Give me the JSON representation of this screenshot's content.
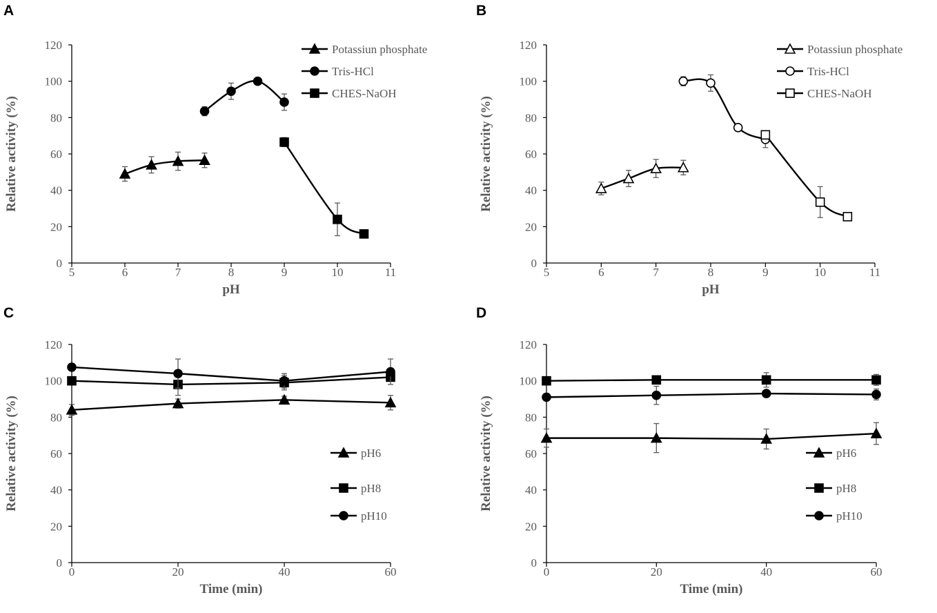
{
  "chart_data": [
    {
      "panel": "A",
      "type": "line",
      "xlabel": "pH",
      "ylabel": "Relative activity (%)",
      "xlim": [
        5,
        11
      ],
      "ylim": [
        0,
        120
      ],
      "xticks": [
        5,
        6,
        7,
        8,
        9,
        10,
        11
      ],
      "yticks": [
        0,
        20,
        40,
        60,
        80,
        100,
        120
      ],
      "legend": "top-right",
      "marker_fill": "filled",
      "smooth": true,
      "series": [
        {
          "name": "Potassiun phosphate",
          "marker": "triangle",
          "x": [
            6,
            6.5,
            7,
            7.5
          ],
          "y": [
            49,
            54,
            56,
            56.5
          ],
          "err": [
            4,
            4.5,
            5,
            4
          ]
        },
        {
          "name": "Tris-HCl",
          "marker": "circle",
          "x": [
            7.5,
            8,
            8.5,
            9
          ],
          "y": [
            83.5,
            94.5,
            100,
            88.5
          ],
          "err": [
            2.5,
            4.5,
            1,
            4.5
          ]
        },
        {
          "name": "CHES-NaOH",
          "marker": "square",
          "x": [
            9,
            10,
            10.5
          ],
          "y": [
            66.5,
            24,
            16
          ],
          "err": [
            2.5,
            9,
            2
          ]
        }
      ]
    },
    {
      "panel": "B",
      "type": "line",
      "xlabel": "pH",
      "ylabel": "Relative activity (%)",
      "xlim": [
        5,
        11
      ],
      "ylim": [
        0,
        120
      ],
      "xticks": [
        5,
        6,
        7,
        8,
        9,
        10,
        11
      ],
      "yticks": [
        0,
        20,
        40,
        60,
        80,
        100,
        120
      ],
      "legend": "top-right",
      "marker_fill": "open",
      "smooth": true,
      "series": [
        {
          "name": "Potassiun phosphate",
          "marker": "triangle",
          "x": [
            6,
            6.5,
            7,
            7.5
          ],
          "y": [
            41,
            46.5,
            52,
            52.5
          ],
          "err": [
            3.5,
            4.5,
            5,
            4
          ]
        },
        {
          "name": "Tris-HCl",
          "marker": "circle",
          "x": [
            7.5,
            8,
            8.5,
            9
          ],
          "y": [
            100,
            99,
            74.5,
            68
          ],
          "err": [
            2.5,
            4.5,
            1.5,
            4.5
          ]
        },
        {
          "name": "CHES-NaOH",
          "marker": "square",
          "x": [
            9,
            10,
            10.5
          ],
          "y": [
            70.5,
            33.5,
            25.5
          ],
          "err": [
            2,
            8.5,
            1.5
          ]
        }
      ]
    },
    {
      "panel": "C",
      "type": "line",
      "xlabel": "Time (min)",
      "ylabel": "Relative activity (%)",
      "xlim": [
        0,
        60
      ],
      "ylim": [
        0,
        120
      ],
      "xticks": [
        0,
        20,
        40,
        60
      ],
      "yticks": [
        0,
        20,
        40,
        60,
        80,
        100,
        120
      ],
      "legend": "bottom-right",
      "marker_fill": "filled",
      "smooth": false,
      "series": [
        {
          "name": "pH6",
          "marker": "triangle",
          "x": [
            0,
            20,
            40,
            60
          ],
          "y": [
            84,
            87.5,
            89.5,
            88
          ],
          "err": [
            3,
            2.5,
            2,
            4
          ]
        },
        {
          "name": "pH8",
          "marker": "square",
          "x": [
            0,
            20,
            40,
            60
          ],
          "y": [
            100,
            98,
            99,
            102
          ],
          "err": [
            2,
            6,
            4,
            2
          ]
        },
        {
          "name": "pH10",
          "marker": "circle",
          "x": [
            0,
            20,
            40,
            60
          ],
          "y": [
            107.5,
            104,
            100,
            105
          ],
          "err": [
            2,
            8,
            4,
            7
          ]
        }
      ]
    },
    {
      "panel": "D",
      "type": "line",
      "xlabel": "Time (min)",
      "ylabel": "Relative activity (%)",
      "xlim": [
        0,
        60
      ],
      "ylim": [
        0,
        120
      ],
      "xticks": [
        0,
        20,
        40,
        60
      ],
      "yticks": [
        0,
        20,
        40,
        60,
        80,
        100,
        120
      ],
      "legend": "bottom-right",
      "marker_fill": "filled",
      "smooth": false,
      "series": [
        {
          "name": "pH6",
          "marker": "triangle",
          "x": [
            0,
            20,
            40,
            60
          ],
          "y": [
            68.5,
            68.5,
            68,
            71
          ],
          "err": [
            5,
            8,
            5.5,
            6
          ]
        },
        {
          "name": "pH8",
          "marker": "square",
          "x": [
            0,
            20,
            40,
            60
          ],
          "y": [
            100,
            100.5,
            100.5,
            100.5
          ],
          "err": [
            1,
            1,
            4,
            3
          ]
        },
        {
          "name": "pH10",
          "marker": "circle",
          "x": [
            0,
            20,
            40,
            60
          ],
          "y": [
            91,
            92,
            93,
            92.5
          ],
          "err": [
            2,
            5,
            1,
            3
          ]
        }
      ]
    }
  ],
  "colors": {
    "line": "#000000",
    "axis": "#000000",
    "text": "#595959",
    "errorbar": "#595959"
  }
}
